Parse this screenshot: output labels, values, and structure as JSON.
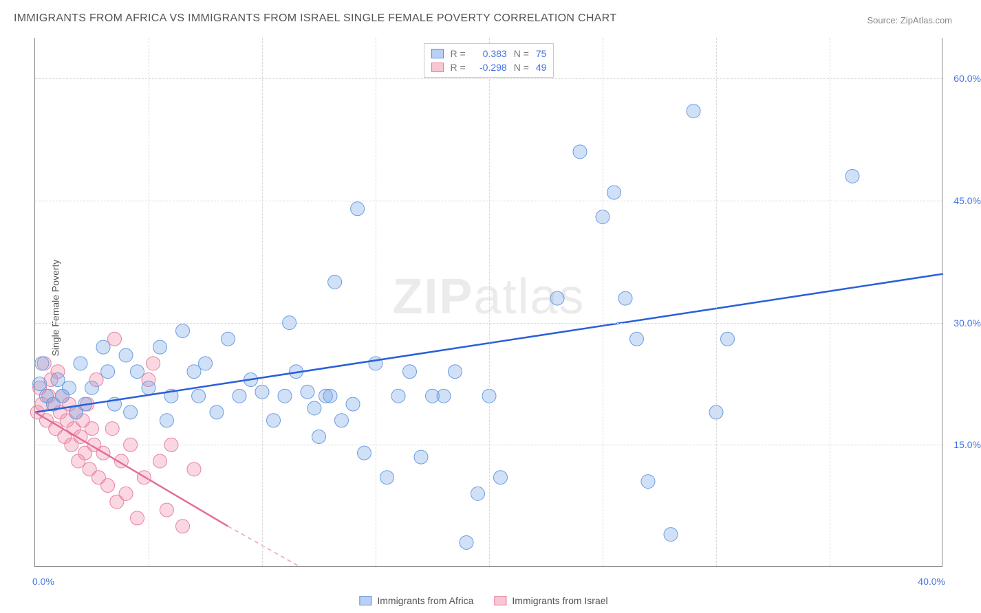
{
  "title": "IMMIGRANTS FROM AFRICA VS IMMIGRANTS FROM ISRAEL SINGLE FEMALE POVERTY CORRELATION CHART",
  "source": "Source: ZipAtlas.com",
  "ylabel": "Single Female Poverty",
  "watermark_zip": "ZIP",
  "watermark_atlas": "atlas",
  "chart": {
    "type": "scatter-correlation",
    "background_color": "#ffffff",
    "grid_color": "#d8d8d8",
    "axis_color": "#888888",
    "text_color": "#555555",
    "value_color": "#4472e4",
    "x_range": [
      0,
      40
    ],
    "y_range": [
      0,
      65
    ],
    "x_ticks": [
      0,
      40
    ],
    "x_tick_labels": [
      "0.0%",
      "40.0%"
    ],
    "y_ticks": [
      15,
      30,
      45,
      60
    ],
    "y_tick_labels": [
      "15.0%",
      "30.0%",
      "45.0%",
      "60.0%"
    ],
    "x_gridlines_at": [
      5,
      10,
      15,
      20,
      25,
      30,
      35
    ],
    "point_radius": 10,
    "series": [
      {
        "name": "Africa",
        "label": "Immigrants from Africa",
        "color_fill": "rgba(120,165,230,0.35)",
        "color_stroke": "#6a9de0",
        "trend_color": "#2b5fd9",
        "R": "0.383",
        "N": "75",
        "trend": {
          "x1": 0,
          "y1": 19,
          "x2": 40,
          "y2": 36
        },
        "points": [
          [
            0.2,
            22.5
          ],
          [
            0.3,
            25
          ],
          [
            0.5,
            21
          ],
          [
            0.8,
            20
          ],
          [
            1.0,
            23
          ],
          [
            1.2,
            21
          ],
          [
            1.5,
            22
          ],
          [
            1.8,
            19
          ],
          [
            2.0,
            25
          ],
          [
            2.2,
            20
          ],
          [
            2.5,
            22
          ],
          [
            3.0,
            27
          ],
          [
            3.2,
            24
          ],
          [
            3.5,
            20
          ],
          [
            4.0,
            26
          ],
          [
            4.2,
            19
          ],
          [
            4.5,
            24
          ],
          [
            5.0,
            22
          ],
          [
            5.5,
            27
          ],
          [
            5.8,
            18
          ],
          [
            6.0,
            21
          ],
          [
            6.5,
            29
          ],
          [
            7.0,
            24
          ],
          [
            7.2,
            21
          ],
          [
            7.5,
            25
          ],
          [
            8.0,
            19
          ],
          [
            8.5,
            28
          ],
          [
            9.0,
            21
          ],
          [
            9.5,
            23
          ],
          [
            10,
            21.5
          ],
          [
            10.5,
            18
          ],
          [
            11,
            21
          ],
          [
            11.2,
            30
          ],
          [
            11.5,
            24
          ],
          [
            12,
            21.5
          ],
          [
            12.3,
            19.5
          ],
          [
            12.5,
            16
          ],
          [
            12.8,
            21
          ],
          [
            13,
            21
          ],
          [
            13.2,
            35
          ],
          [
            13.5,
            18
          ],
          [
            14,
            20
          ],
          [
            14.2,
            44
          ],
          [
            14.5,
            14
          ],
          [
            15,
            25
          ],
          [
            15.5,
            11
          ],
          [
            16,
            21
          ],
          [
            16.5,
            24
          ],
          [
            17,
            13.5
          ],
          [
            17.5,
            21
          ],
          [
            18,
            21
          ],
          [
            18.5,
            24
          ],
          [
            19,
            3
          ],
          [
            19.5,
            9
          ],
          [
            20,
            21
          ],
          [
            20.5,
            11
          ],
          [
            23,
            33
          ],
          [
            24,
            51
          ],
          [
            25,
            43
          ],
          [
            25.5,
            46
          ],
          [
            26,
            33
          ],
          [
            26.5,
            28
          ],
          [
            27,
            10.5
          ],
          [
            28,
            4
          ],
          [
            29,
            56
          ],
          [
            30,
            19
          ],
          [
            30.5,
            28
          ],
          [
            36,
            48
          ]
        ]
      },
      {
        "name": "Israel",
        "label": "Immigrants from Israel",
        "color_fill": "rgba(240,140,170,0.35)",
        "color_stroke": "#e681a4",
        "trend_color": "#e56d95",
        "trend_dash_color": "#e8a2b8",
        "R": "-0.298",
        "N": "49",
        "trend_solid": {
          "x1": 0,
          "y1": 19,
          "x2": 8.5,
          "y2": 5
        },
        "trend_dashed": {
          "x1": 8.5,
          "y1": 5,
          "x2": 15.5,
          "y2": -6
        },
        "points": [
          [
            0.1,
            19
          ],
          [
            0.2,
            22
          ],
          [
            0.3,
            20
          ],
          [
            0.4,
            25
          ],
          [
            0.5,
            18
          ],
          [
            0.6,
            21
          ],
          [
            0.7,
            23
          ],
          [
            0.8,
            20
          ],
          [
            0.9,
            17
          ],
          [
            1.0,
            24
          ],
          [
            1.1,
            19
          ],
          [
            1.2,
            21
          ],
          [
            1.3,
            16
          ],
          [
            1.4,
            18
          ],
          [
            1.5,
            20
          ],
          [
            1.6,
            15
          ],
          [
            1.7,
            17
          ],
          [
            1.8,
            19
          ],
          [
            1.9,
            13
          ],
          [
            2.0,
            16
          ],
          [
            2.1,
            18
          ],
          [
            2.2,
            14
          ],
          [
            2.3,
            20
          ],
          [
            2.4,
            12
          ],
          [
            2.5,
            17
          ],
          [
            2.6,
            15
          ],
          [
            2.7,
            23
          ],
          [
            2.8,
            11
          ],
          [
            3.0,
            14
          ],
          [
            3.2,
            10
          ],
          [
            3.4,
            17
          ],
          [
            3.5,
            28
          ],
          [
            3.6,
            8
          ],
          [
            3.8,
            13
          ],
          [
            4.0,
            9
          ],
          [
            4.2,
            15
          ],
          [
            4.5,
            6
          ],
          [
            4.8,
            11
          ],
          [
            5.0,
            23
          ],
          [
            5.2,
            25
          ],
          [
            5.5,
            13
          ],
          [
            5.8,
            7
          ],
          [
            6.0,
            15
          ],
          [
            6.5,
            5
          ],
          [
            7.0,
            12
          ]
        ]
      }
    ],
    "legend_top_labels": {
      "R": "R =",
      "N": "N ="
    }
  }
}
